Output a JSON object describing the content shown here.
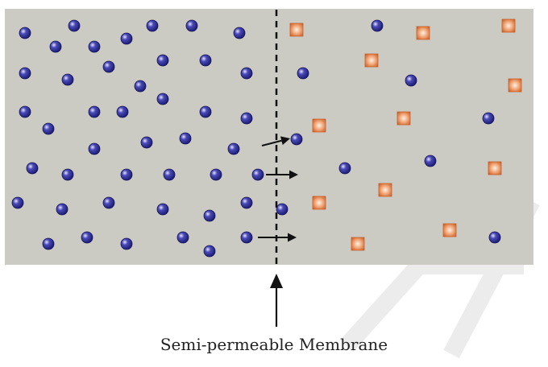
{
  "caption": "Semi-permeable Membrane",
  "colors": {
    "background": "#ffffff",
    "chamber_fill": "#cbcbc3",
    "solvent_dark": "#1a1a6e",
    "solvent_mid": "#4a4ab8",
    "solvent_light": "#e6e6ff",
    "solute_edge": "#c9602a",
    "solute_light": "#fff1e2",
    "arrow": "#1a1a1a",
    "watermark": "#e6e6e6"
  },
  "icons": {
    "solvent_particle": "blue-sphere-icon",
    "solute_particle": "orange-square-icon",
    "flow_arrow": "arrow-right-icon",
    "pointer_arrow": "arrow-up-icon"
  }
}
